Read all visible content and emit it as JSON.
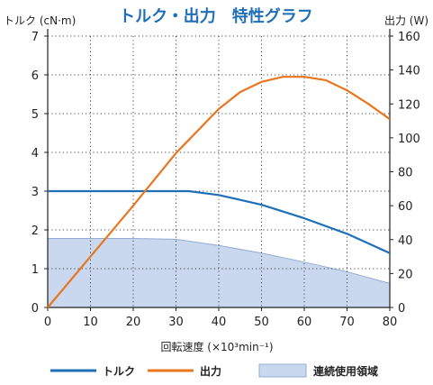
{
  "chart_data": {
    "type": "line",
    "title": "トルク・出力　特性グラフ",
    "ylabel_left": "トルク (cN·m)",
    "ylabel_right": "出力 (W)",
    "xlabel": "回転速度 (×10³min⁻¹)",
    "xlim": [
      0,
      80
    ],
    "ylim_left": [
      0,
      7
    ],
    "ylim_right": [
      0,
      160
    ],
    "x_ticks": [
      "0",
      "10",
      "20",
      "30",
      "40",
      "50",
      "60",
      "70",
      "80"
    ],
    "y_left_ticks": [
      "0",
      "1",
      "2",
      "3",
      "4",
      "5",
      "6",
      "7"
    ],
    "y_right_ticks": [
      "0",
      "20",
      "40",
      "60",
      "80",
      "100",
      "120",
      "140",
      "160"
    ],
    "grid": true,
    "legend_position": "bottom",
    "series": [
      {
        "name": "トルク",
        "axis": "left",
        "color": "#1f6fb8",
        "x": [
          0,
          10,
          20,
          30,
          33,
          40,
          50,
          60,
          70,
          80
        ],
        "y": [
          3.0,
          3.0,
          3.0,
          3.0,
          3.0,
          2.9,
          2.65,
          2.3,
          1.9,
          1.4
        ]
      },
      {
        "name": "出力",
        "axis": "right",
        "color": "#e8761f",
        "x": [
          0,
          10,
          20,
          30,
          40,
          45,
          50,
          55,
          60,
          65,
          70,
          75,
          80
        ],
        "y": [
          0,
          30,
          60,
          91,
          117,
          127,
          133,
          136,
          136,
          134,
          128,
          120,
          111
        ]
      },
      {
        "name": "連続使用領域",
        "axis": "left",
        "fill": "#c9d8ef",
        "stroke": "#93abd3",
        "x": [
          0,
          10,
          20,
          30,
          40,
          50,
          60,
          70,
          80
        ],
        "y": [
          1.78,
          1.78,
          1.78,
          1.76,
          1.6,
          1.4,
          1.17,
          0.92,
          0.62
        ]
      }
    ]
  }
}
